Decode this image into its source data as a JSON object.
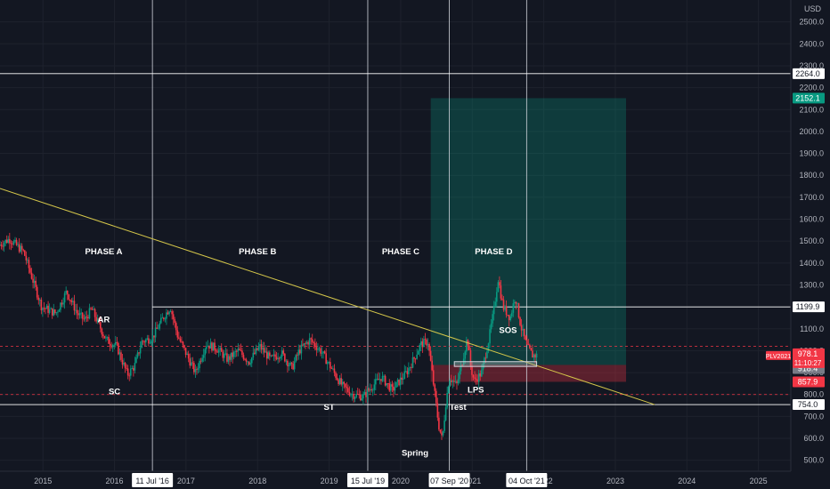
{
  "chart_data": {
    "type": "candlestick",
    "currency": "USD",
    "ylim": [
      450,
      2600
    ],
    "y_ticks": [
      500,
      600,
      700,
      800,
      900,
      1000,
      1100,
      1200,
      1300,
      1400,
      1500,
      1600,
      1700,
      1800,
      1900,
      2000,
      2100,
      2200,
      2300,
      2400,
      2500
    ],
    "y_tick_labels": [
      "500.0",
      "600.0",
      "700.0",
      "800.0",
      "900.0",
      "1000.0",
      "1100.0",
      "1200.0",
      "1300.0",
      "1400.0",
      "1500.0",
      "1600.0",
      "1700.0",
      "1800.0",
      "1900.0",
      "2000.0",
      "2100.0",
      "2200.0",
      "2300.0",
      "2400.0",
      "2500.0"
    ],
    "x_range_years": [
      2014.4,
      2026.0
    ],
    "x_ticks": [
      {
        "year": 2015.0,
        "label": "2015"
      },
      {
        "year": 2016.0,
        "label": "2016"
      },
      {
        "year": 2017.0,
        "label": "2017"
      },
      {
        "year": 2018.0,
        "label": "2018"
      },
      {
        "year": 2019.0,
        "label": "2019"
      },
      {
        "year": 2020.0,
        "label": "2020"
      },
      {
        "year": 2021.0,
        "label": "2021"
      },
      {
        "year": 2022.0,
        "label": "2022"
      },
      {
        "year": 2023.0,
        "label": "2023"
      },
      {
        "year": 2024.0,
        "label": "2024"
      },
      {
        "year": 2025.0,
        "label": "2025"
      }
    ],
    "vertical_markers": [
      {
        "year": 2016.53,
        "label": "11 Jul '16"
      },
      {
        "year": 2019.54,
        "label": "15 Jul '19"
      },
      {
        "year": 2020.68,
        "label": "07 Sep '20"
      },
      {
        "year": 2021.76,
        "label": "04 Oct '21"
      }
    ],
    "horizontal_levels": [
      {
        "price": 2264.0,
        "label": "2264.0",
        "style": "solid"
      },
      {
        "price": 1199.9,
        "label": "1199.9",
        "style": "solid",
        "from_year": 2016.53
      },
      {
        "price": 754.0,
        "label": "754.0",
        "style": "solid"
      },
      {
        "price": 1020.0,
        "style": "dashed"
      },
      {
        "price": 800.0,
        "style": "dashed"
      }
    ],
    "price_tags": [
      {
        "price": 2152.1,
        "label": "2152.1",
        "color": "#089981"
      },
      {
        "price": 918.4,
        "label": "918.4",
        "color": "#787b86"
      },
      {
        "price": 857.9,
        "label": "857.9",
        "color": "#f23645"
      }
    ],
    "last_price": {
      "symbol": "PLV2021",
      "price": 978.1,
      "label": "978.1",
      "countdown": "11:10:27",
      "color": "#f23645"
    },
    "trendline": {
      "start": [
        2014.4,
        1740
      ],
      "end": [
        2023.55,
        754
      ]
    },
    "long_position": {
      "from_year": 2020.42,
      "to_year": 2023.15,
      "entry": 935,
      "target": 2152.1,
      "stop": 857.9
    },
    "consolidation_box": {
      "from_year": 2020.75,
      "to_year": 2021.9,
      "low": 928,
      "high": 950
    },
    "annotations": [
      {
        "text": "PHASE A",
        "year": 2015.85,
        "price": 1440
      },
      {
        "text": "PHASE B",
        "year": 2018.0,
        "price": 1440
      },
      {
        "text": "PHASE C",
        "year": 2020.0,
        "price": 1440
      },
      {
        "text": "PHASE D",
        "year": 2021.3,
        "price": 1440
      },
      {
        "text": "AR",
        "year": 2015.85,
        "price": 1130
      },
      {
        "text": "SC",
        "year": 2016.0,
        "price": 800
      },
      {
        "text": "ST",
        "year": 2019.0,
        "price": 730
      },
      {
        "text": "Spring",
        "year": 2020.2,
        "price": 520
      },
      {
        "text": "Test",
        "year": 2020.8,
        "price": 730
      },
      {
        "text": "LPS",
        "year": 2021.05,
        "price": 810
      },
      {
        "text": "SOS",
        "year": 2021.5,
        "price": 1080
      }
    ],
    "ohlc_path": [
      [
        2014.4,
        1480
      ],
      [
        2014.55,
        1510
      ],
      [
        2014.75,
        1450
      ],
      [
        2014.85,
        1350
      ],
      [
        2015.0,
        1200
      ],
      [
        2015.2,
        1170
      ],
      [
        2015.35,
        1270
      ],
      [
        2015.5,
        1170
      ],
      [
        2015.6,
        1140
      ],
      [
        2015.7,
        1190
      ],
      [
        2015.9,
        1050
      ],
      [
        2016.05,
        1020
      ],
      [
        2016.2,
        890
      ],
      [
        2016.3,
        930
      ],
      [
        2016.4,
        1040
      ],
      [
        2016.55,
        1060
      ],
      [
        2016.7,
        1150
      ],
      [
        2016.8,
        1200
      ],
      [
        2016.9,
        1070
      ],
      [
        2017.0,
        1000
      ],
      [
        2017.15,
        900
      ],
      [
        2017.3,
        1030
      ],
      [
        2017.45,
        1010
      ],
      [
        2017.6,
        960
      ],
      [
        2017.75,
        1000
      ],
      [
        2017.9,
        950
      ],
      [
        2018.05,
        1020
      ],
      [
        2018.2,
        960
      ],
      [
        2018.35,
        990
      ],
      [
        2018.5,
        920
      ],
      [
        2018.6,
        1000
      ],
      [
        2018.75,
        1050
      ],
      [
        2018.9,
        1000
      ],
      [
        2019.05,
        920
      ],
      [
        2019.2,
        840
      ],
      [
        2019.35,
        800
      ],
      [
        2019.5,
        790
      ],
      [
        2019.6,
        830
      ],
      [
        2019.75,
        880
      ],
      [
        2019.9,
        820
      ],
      [
        2020.0,
        860
      ],
      [
        2020.1,
        900
      ],
      [
        2020.2,
        960
      ],
      [
        2020.3,
        1030
      ],
      [
        2020.4,
        1040
      ],
      [
        2020.45,
        920
      ],
      [
        2020.55,
        660
      ],
      [
        2020.6,
        590
      ],
      [
        2020.65,
        760
      ],
      [
        2020.7,
        880
      ],
      [
        2020.8,
        840
      ],
      [
        2020.88,
        950
      ],
      [
        2020.95,
        1060
      ],
      [
        2021.0,
        920
      ],
      [
        2021.05,
        860
      ],
      [
        2021.15,
        900
      ],
      [
        2021.25,
        1050
      ],
      [
        2021.32,
        1180
      ],
      [
        2021.38,
        1330
      ],
      [
        2021.45,
        1200
      ],
      [
        2021.55,
        1150
      ],
      [
        2021.62,
        1250
      ],
      [
        2021.7,
        1110
      ],
      [
        2021.78,
        1020
      ],
      [
        2021.86,
        980
      ],
      [
        2021.9,
        978
      ]
    ]
  }
}
